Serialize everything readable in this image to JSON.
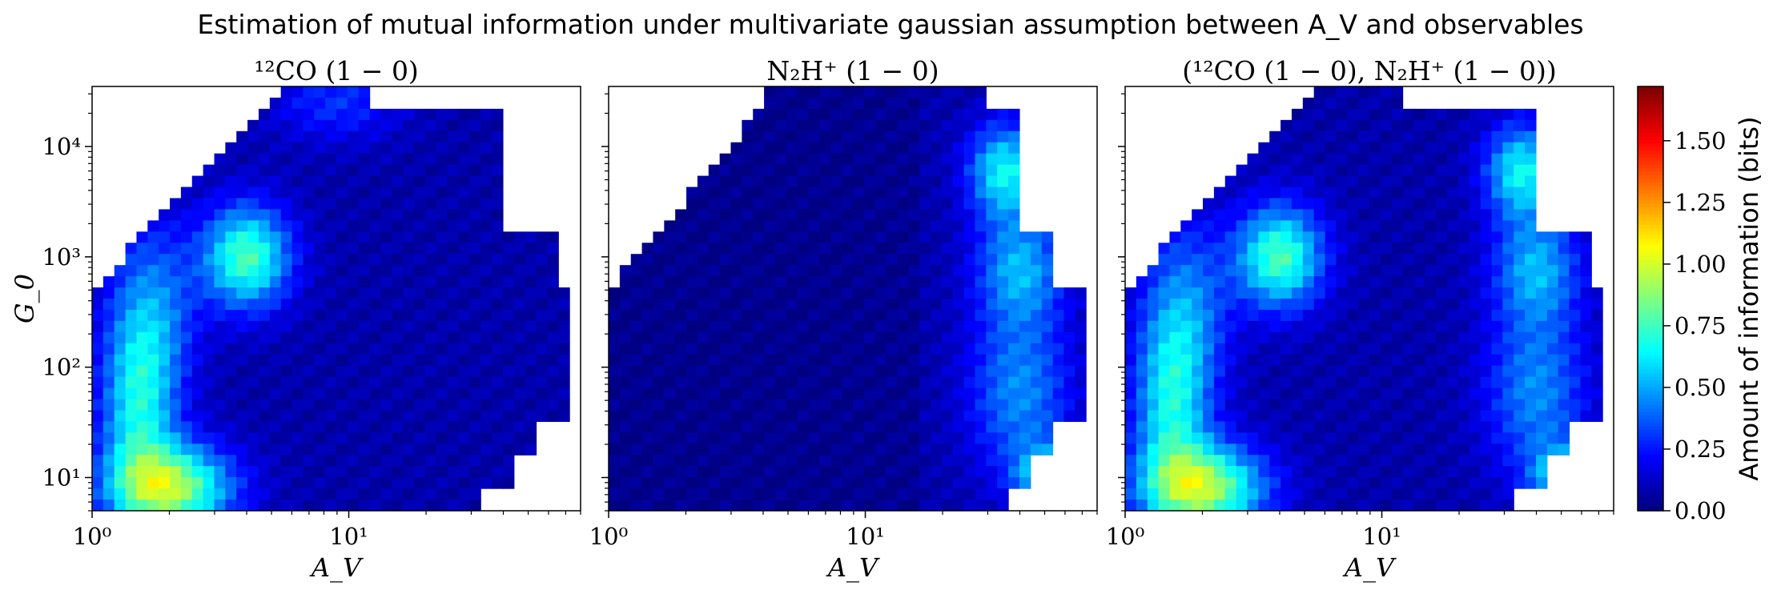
{
  "suptitle": "Estimation of mutual information under multivariate gaussian assumption between A_V and observables",
  "chart_data": [
    {
      "type": "heatmap",
      "title": "¹²CO (1 − 0)",
      "xlabel": "A_V",
      "ylabel": "G_0",
      "xscale": "log",
      "yscale": "log",
      "xlim": [
        1,
        80
      ],
      "ylim": [
        5,
        35000
      ],
      "xticks": [
        {
          "value": 1,
          "label": "10⁰"
        },
        {
          "value": 10,
          "label": "10¹"
        }
      ],
      "yticks": [
        {
          "value": 10,
          "label": "10¹"
        },
        {
          "value": 100,
          "label": "10²"
        },
        {
          "value": 1000,
          "label": "10³"
        },
        {
          "value": 10000,
          "label": "10⁴"
        }
      ],
      "colormap": "jet",
      "clim": [
        0,
        1.72
      ],
      "features": [
        {
          "av": 2.0,
          "g0": 8,
          "peak": 0.85,
          "sx": 0.17,
          "sy": 0.28
        },
        {
          "av": 4.0,
          "g0": 1000,
          "peak": 0.7,
          "sx": 0.12,
          "sy": 0.33
        },
        {
          "av": 1.5,
          "g0": 40,
          "peak": 0.48,
          "sx": 0.1,
          "sy": 0.55
        },
        {
          "av": 1.7,
          "g0": 300,
          "peak": 0.38,
          "sx": 0.12,
          "sy": 0.6
        },
        {
          "av": 9.0,
          "g0": 25000,
          "peak": 0.22,
          "sx": 0.18,
          "sy": 0.25
        }
      ]
    },
    {
      "type": "heatmap",
      "title": "N₂H⁺ (1 − 0)",
      "xlabel": "A_V",
      "xscale": "log",
      "yscale": "log",
      "xlim": [
        1,
        80
      ],
      "ylim": [
        5,
        35000
      ],
      "xticks": [
        {
          "value": 1,
          "label": "10⁰"
        },
        {
          "value": 10,
          "label": "10¹"
        }
      ],
      "colormap": "jet",
      "clim": [
        0,
        1.72
      ],
      "features": [
        {
          "av": 35,
          "g0": 6000,
          "peak": 0.58,
          "sx": 0.1,
          "sy": 0.3
        },
        {
          "av": 40,
          "g0": 800,
          "peak": 0.42,
          "sx": 0.12,
          "sy": 0.35
        },
        {
          "av": 40,
          "g0": 60,
          "peak": 0.38,
          "sx": 0.14,
          "sy": 0.55
        },
        {
          "av": 50,
          "g0": 10,
          "peak": 0.5,
          "sx": 0.08,
          "sy": 0.2
        }
      ]
    },
    {
      "type": "heatmap",
      "title": "(¹²CO (1 − 0), N₂H⁺ (1 − 0))",
      "xlabel": "A_V",
      "xscale": "log",
      "yscale": "log",
      "xlim": [
        1,
        80
      ],
      "ylim": [
        5,
        35000
      ],
      "xticks": [
        {
          "value": 1,
          "label": "10⁰"
        },
        {
          "value": 10,
          "label": "10¹"
        }
      ],
      "colormap": "jet",
      "clim": [
        0,
        1.72
      ],
      "features": [
        {
          "av": 2.0,
          "g0": 8,
          "peak": 0.85,
          "sx": 0.17,
          "sy": 0.28
        },
        {
          "av": 4.0,
          "g0": 1000,
          "peak": 0.7,
          "sx": 0.12,
          "sy": 0.33
        },
        {
          "av": 1.5,
          "g0": 40,
          "peak": 0.48,
          "sx": 0.1,
          "sy": 0.55
        },
        {
          "av": 1.7,
          "g0": 300,
          "peak": 0.38,
          "sx": 0.12,
          "sy": 0.6
        },
        {
          "av": 35,
          "g0": 6000,
          "peak": 0.58,
          "sx": 0.1,
          "sy": 0.3
        },
        {
          "av": 40,
          "g0": 800,
          "peak": 0.42,
          "sx": 0.12,
          "sy": 0.35
        },
        {
          "av": 40,
          "g0": 60,
          "peak": 0.38,
          "sx": 0.14,
          "sy": 0.55
        },
        {
          "av": 50,
          "g0": 10,
          "peak": 0.5,
          "sx": 0.08,
          "sy": 0.2
        }
      ]
    }
  ],
  "colorbar": {
    "label": "Amount of information (bits)",
    "ticks": [
      {
        "value": 0.0,
        "label": "0.00"
      },
      {
        "value": 0.25,
        "label": "0.25"
      },
      {
        "value": 0.5,
        "label": "0.50"
      },
      {
        "value": 0.75,
        "label": "0.75"
      },
      {
        "value": 1.0,
        "label": "1.00"
      },
      {
        "value": 1.25,
        "label": "1.25"
      },
      {
        "value": 1.5,
        "label": "1.50"
      }
    ],
    "vmin": 0,
    "vmax": 1.72
  }
}
